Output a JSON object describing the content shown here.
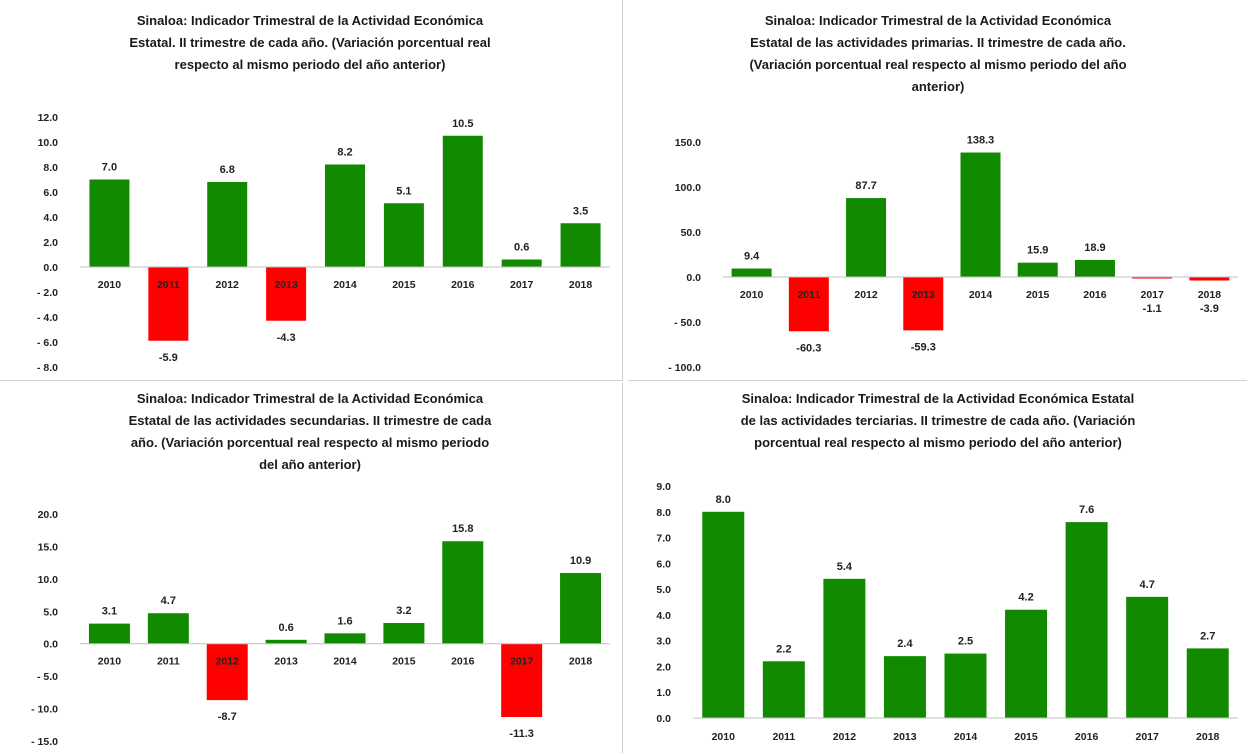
{
  "chart_data": [
    {
      "type": "bar",
      "title_lines": [
        "Sinaloa: Indicador Trimestral de la Actividad Económica",
        "Estatal. II trimestre de cada año. (Variación porcentual real",
        "respecto al mismo periodo del año anterior)"
      ],
      "categories": [
        "2010",
        "2011",
        "2012",
        "2013",
        "2014",
        "2015",
        "2016",
        "2017",
        "2018"
      ],
      "values": [
        7.0,
        -5.9,
        6.8,
        -4.3,
        8.2,
        5.1,
        10.5,
        0.6,
        3.5
      ],
      "data_labels": [
        "7.0",
        "-5.9",
        "6.8",
        "-4.3",
        "8.2",
        "5.1",
        "10.5",
        "0.6",
        "3.5"
      ],
      "ylim": [
        -8.0,
        12.0
      ],
      "yticks": [
        12.0,
        10.0,
        8.0,
        6.0,
        4.0,
        2.0,
        0.0,
        -2.0,
        -4.0,
        -6.0,
        -8.0
      ],
      "ytick_labels": [
        "12.0",
        "10.0",
        "8.0",
        "6.0",
        "4.0",
        "2.0",
        "0.0",
        "-  2.0",
        "-  4.0",
        "-  6.0",
        "-  8.0"
      ],
      "grid": false
    },
    {
      "type": "bar",
      "title_lines": [
        "Sinaloa: Indicador Trimestral de la Actividad Económica",
        "Estatal de las actividades primarias. II trimestre de cada año.",
        "(Variación porcentual real respecto al mismo periodo del año",
        "anterior)"
      ],
      "categories": [
        "2010",
        "2011",
        "2012",
        "2013",
        "2014",
        "2015",
        "2016",
        "2017",
        "2018"
      ],
      "values": [
        9.4,
        -60.3,
        87.7,
        -59.3,
        138.3,
        15.9,
        18.9,
        -1.1,
        -3.9
      ],
      "data_labels": [
        "9.4",
        "-60.3",
        "87.7",
        "-59.3",
        "138.3",
        "15.9",
        "18.9",
        "-1.1",
        "-3.9"
      ],
      "ylim": [
        -100.0,
        150.0
      ],
      "yticks": [
        150.0,
        100.0,
        50.0,
        0.0,
        -50.0,
        -100.0
      ],
      "ytick_labels": [
        "150.0",
        "100.0",
        "50.0",
        "0.0",
        "-  50.0",
        "-  100.0"
      ],
      "grid": false
    },
    {
      "type": "bar",
      "title_lines": [
        "Sinaloa: Indicador Trimestral de la Actividad Económica",
        "Estatal de las actividades secundarias. II trimestre de cada",
        "año. (Variación porcentual real respecto al mismo periodo",
        "del año anterior)"
      ],
      "categories": [
        "2010",
        "2011",
        "2012",
        "2013",
        "2014",
        "2015",
        "2016",
        "2017",
        "2018"
      ],
      "values": [
        3.1,
        4.7,
        -8.7,
        0.6,
        1.6,
        3.2,
        15.8,
        -11.3,
        10.9
      ],
      "data_labels": [
        "3.1",
        "4.7",
        "-8.7",
        "0.6",
        "1.6",
        "3.2",
        "15.8",
        "-11.3",
        "10.9"
      ],
      "ylim": [
        -15.0,
        20.0
      ],
      "yticks": [
        20.0,
        15.0,
        10.0,
        5.0,
        0.0,
        -5.0,
        -10.0,
        -15.0
      ],
      "ytick_labels": [
        "20.0",
        "15.0",
        "10.0",
        "5.0",
        "0.0",
        "-  5.0",
        "-  10.0",
        "-  15.0"
      ],
      "grid": false
    },
    {
      "type": "bar",
      "title_lines": [
        "Sinaloa: Indicador Trimestral de la Actividad Económica Estatal",
        "de las actividades terciarias. II trimestre de cada año. (Variación",
        "porcentual real respecto al mismo periodo del año anterior)"
      ],
      "categories": [
        "2010",
        "2011",
        "2012",
        "2013",
        "2014",
        "2015",
        "2016",
        "2017",
        "2018"
      ],
      "values": [
        8.0,
        2.2,
        5.4,
        2.4,
        2.5,
        4.2,
        7.6,
        4.7,
        2.7
      ],
      "data_labels": [
        "8.0",
        "2.2",
        "5.4",
        "2.4",
        "2.5",
        "4.2",
        "7.6",
        "4.7",
        "2.7"
      ],
      "ylim": [
        0.0,
        9.0
      ],
      "yticks": [
        9.0,
        8.0,
        7.0,
        6.0,
        5.0,
        4.0,
        3.0,
        2.0,
        1.0,
        0.0
      ],
      "ytick_labels": [
        "9.0",
        "8.0",
        "7.0",
        "6.0",
        "5.0",
        "4.0",
        "3.0",
        "2.0",
        "1.0",
        "0.0"
      ],
      "grid": false
    }
  ],
  "colors": {
    "positive": "#118a00",
    "negative": "#ff0000",
    "axis": "#bfbfbf",
    "text": "#222222"
  }
}
